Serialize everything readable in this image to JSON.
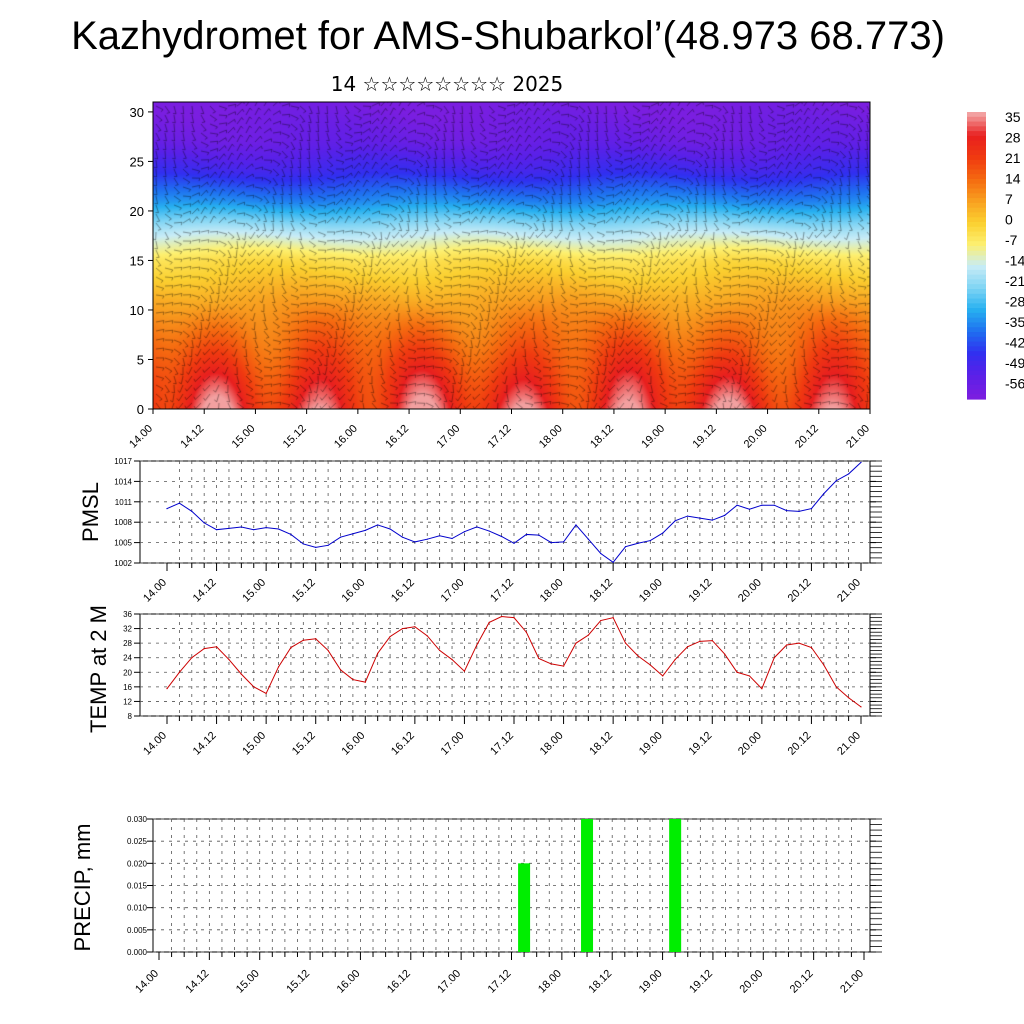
{
  "title": "Kazhydromet for AMS-Shubarkol’(48.973 68.773)",
  "subtitle": "14 ☆☆☆☆☆☆☆☆ 2025",
  "x_ticks": [
    "14.00",
    "14.12",
    "15.00",
    "15.12",
    "16.00",
    "16.12",
    "17.00",
    "17.12",
    "18.00",
    "18.12",
    "19.00",
    "19.12",
    "20.00",
    "20.12",
    "21.00"
  ],
  "colors": {
    "pmsl_line": "#0000cc",
    "temp_line": "#cc0000",
    "precip_bar": "#00ee00",
    "grid": "#555555"
  },
  "chart_data": [
    {
      "type": "heatmap",
      "name": "cross-section",
      "ylim": [
        0,
        31
      ],
      "y_ticks": [
        0,
        5,
        10,
        15,
        20,
        25,
        30
      ],
      "colorbar_labels": [
        "35",
        "28",
        "21",
        "14",
        "7",
        "0",
        "-7",
        "-14",
        "-21",
        "-28",
        "-35",
        "-42",
        "-49",
        "-56"
      ],
      "levels": [
        35,
        28,
        21,
        14,
        7,
        0,
        -7,
        -14,
        -21,
        -28,
        -35,
        -42,
        -49,
        -56
      ],
      "level_colors": [
        "#f2a0a0",
        "#e81f1f",
        "#f03a10",
        "#f56a10",
        "#f8a020",
        "#fbd030",
        "#fdf070",
        "#c8ecf6",
        "#7fd4f4",
        "#27b0f0",
        "#1f70f0",
        "#3030f0",
        "#5a20e8",
        "#7a1ee0"
      ],
      "profile_height": [
        0,
        3,
        6,
        9,
        12,
        15,
        18,
        21,
        24,
        27,
        31
      ],
      "profile_temp": [
        28,
        23,
        17,
        11,
        4,
        -3,
        -16,
        -32,
        -44,
        -52,
        -56
      ],
      "diurnal_amplitude": 9
    },
    {
      "type": "line",
      "name": "PMSL",
      "ylabel": "PMSL",
      "ylim": [
        1002,
        1017
      ],
      "y_ticks": [
        1002,
        1005,
        1008,
        1011,
        1014,
        1017
      ],
      "x": [
        0,
        3,
        6,
        9,
        12,
        15,
        18,
        21,
        24,
        27,
        30,
        33,
        36,
        39,
        42,
        45,
        48,
        51,
        54,
        57,
        60,
        63,
        66,
        69,
        72,
        75,
        78,
        81,
        84,
        87,
        90,
        93,
        96,
        99,
        102,
        105,
        108,
        111,
        114,
        117,
        120,
        123,
        126,
        129,
        132,
        135,
        138,
        141,
        144,
        147,
        150,
        153,
        156,
        159,
        162,
        165,
        168
      ],
      "values": [
        1010,
        1010.8,
        1009.6,
        1007.9,
        1006.9,
        1007.1,
        1007.3,
        1006.9,
        1007.2,
        1007.0,
        1006.2,
        1004.8,
        1004.3,
        1004.6,
        1005.8,
        1006.3,
        1006.8,
        1007.6,
        1007.0,
        1005.8,
        1005.1,
        1005.5,
        1006.0,
        1005.6,
        1006.6,
        1007.3,
        1006.7,
        1005.9,
        1004.9,
        1006.2,
        1006.1,
        1005.0,
        1005.1,
        1007.6,
        1005.5,
        1003.4,
        1002.1,
        1004.4,
        1004.9,
        1005.3,
        1006.4,
        1008.2,
        1008.9,
        1008.6,
        1008.3,
        1009.0,
        1010.5,
        1009.9,
        1010.5,
        1010.5,
        1009.7,
        1009.6,
        1010.0,
        1012.2,
        1014.1,
        1015.1,
        1016.8
      ]
    },
    {
      "type": "line",
      "name": "TEMP at 2 M",
      "ylabel": "TEMP at 2 M",
      "ylim": [
        8,
        36
      ],
      "y_ticks": [
        8,
        12,
        16,
        20,
        24,
        28,
        32,
        36
      ],
      "x": [
        0,
        3,
        6,
        9,
        12,
        15,
        18,
        21,
        24,
        27,
        30,
        33,
        36,
        39,
        42,
        45,
        48,
        51,
        54,
        57,
        60,
        63,
        66,
        69,
        72,
        75,
        78,
        81,
        84,
        87,
        90,
        93,
        96,
        99,
        102,
        105,
        108,
        111,
        114,
        117,
        120,
        123,
        126,
        129,
        132,
        135,
        138,
        141,
        144,
        147,
        150,
        153,
        156,
        159,
        162,
        165,
        168
      ],
      "values": [
        15.5,
        20,
        24,
        26.5,
        27,
        23.5,
        19.5,
        16,
        14.2,
        21.5,
        26.8,
        28.8,
        29.2,
        26,
        20.7,
        18,
        17.3,
        25.2,
        29.8,
        32,
        32.5,
        30,
        26,
        23.5,
        20.3,
        27.5,
        33.7,
        35.3,
        35,
        31,
        23.8,
        22.3,
        21.7,
        28,
        30.2,
        34.2,
        35,
        28,
        24.5,
        22,
        19,
        23.5,
        27,
        28.5,
        28.7,
        25,
        20,
        19,
        15.5,
        24,
        27.5,
        28,
        26.8,
        22,
        16,
        13,
        10.5
      ]
    },
    {
      "type": "bar",
      "name": "PRECIP",
      "ylabel": "PRECIP, mm",
      "ylim": [
        0,
        0.03
      ],
      "y_ticks": [
        "0.000",
        "0.005",
        "0.010",
        "0.015",
        "0.020",
        "0.025",
        "0.030"
      ],
      "x": [
        87,
        102,
        123
      ],
      "values": [
        0.02,
        0.03,
        0.03
      ]
    }
  ]
}
